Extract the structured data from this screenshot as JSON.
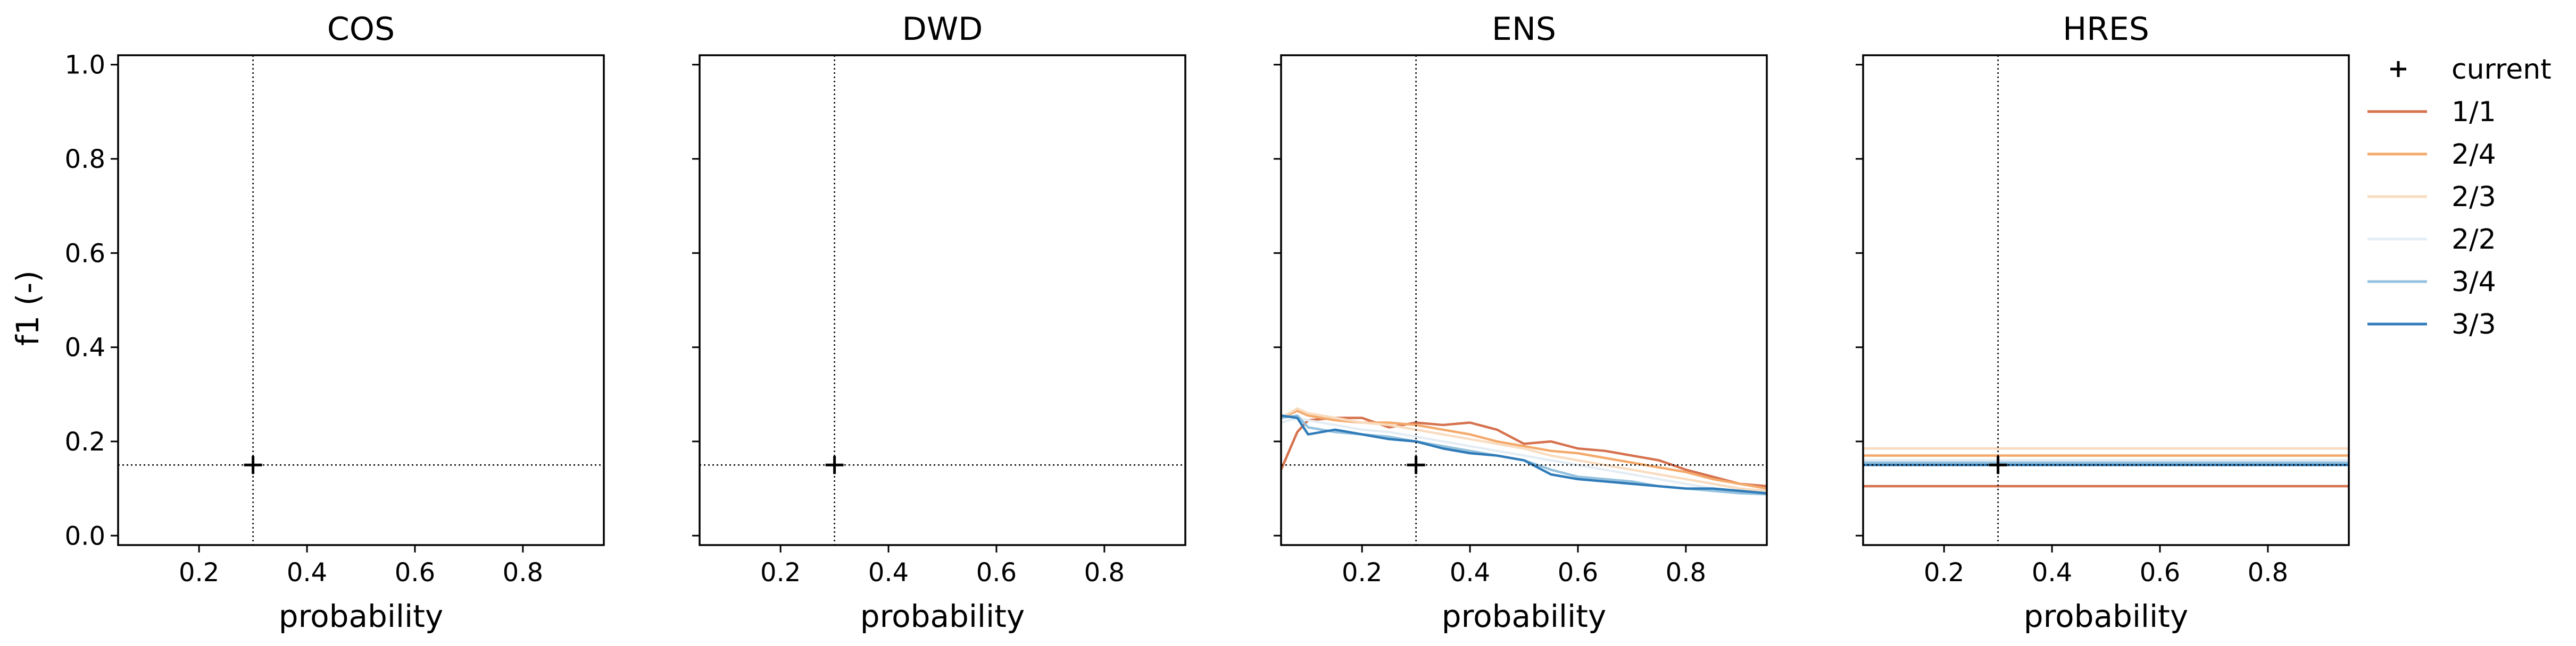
{
  "figure": {
    "ylabel": "f1 (-)",
    "xlabel": "probability",
    "legend_title_marker": "current"
  },
  "colors": {
    "1/1": "#d6714e",
    "2/4": "#f4a96b",
    "2/3": "#f9dcc0",
    "2/2": "#e4edf4",
    "3/4": "#94c1dd",
    "3/3": "#2f7bb8",
    "axes": "#000000",
    "reference": "#000000"
  },
  "chart_data": [
    {
      "type": "line",
      "title": "COS",
      "xlabel": "probability",
      "ylabel": "f1 (-)",
      "xlim": [
        0.05,
        0.95
      ],
      "ylim": [
        -0.02,
        1.02
      ],
      "xticks": [
        0.2,
        0.4,
        0.6,
        0.8
      ],
      "yticks": [
        0.0,
        0.2,
        0.4,
        0.6,
        0.8,
        1.0
      ],
      "reference_line_x": 0.3,
      "reference_line_y": 0.15,
      "current_point": {
        "x": 0.3,
        "y": 0.15
      },
      "series": []
    },
    {
      "type": "line",
      "title": "DWD",
      "xlabel": "probability",
      "ylabel": "",
      "xlim": [
        0.05,
        0.95
      ],
      "ylim": [
        -0.02,
        1.02
      ],
      "xticks": [
        0.2,
        0.4,
        0.6,
        0.8
      ],
      "yticks": [
        0.0,
        0.2,
        0.4,
        0.6,
        0.8,
        1.0
      ],
      "reference_line_x": 0.3,
      "reference_line_y": 0.15,
      "current_point": {
        "x": 0.3,
        "y": 0.15
      },
      "series": []
    },
    {
      "type": "line",
      "title": "ENS",
      "xlabel": "probability",
      "ylabel": "",
      "xlim": [
        0.05,
        0.95
      ],
      "ylim": [
        -0.02,
        1.02
      ],
      "xticks": [
        0.2,
        0.4,
        0.6,
        0.8
      ],
      "yticks": [
        0.0,
        0.2,
        0.4,
        0.6,
        0.8,
        1.0
      ],
      "reference_line_x": 0.3,
      "reference_line_y": 0.15,
      "current_point": {
        "x": 0.3,
        "y": 0.15
      },
      "x": [
        0.05,
        0.08,
        0.1,
        0.15,
        0.2,
        0.25,
        0.3,
        0.35,
        0.4,
        0.45,
        0.5,
        0.55,
        0.6,
        0.65,
        0.7,
        0.75,
        0.8,
        0.85,
        0.9,
        0.95
      ],
      "series": [
        {
          "name": "1/1",
          "values": [
            0.14,
            0.22,
            0.245,
            0.25,
            0.25,
            0.23,
            0.24,
            0.235,
            0.24,
            0.225,
            0.195,
            0.2,
            0.185,
            0.18,
            0.17,
            0.16,
            0.14,
            0.125,
            0.11,
            0.105
          ]
        },
        {
          "name": "2/4",
          "values": [
            0.25,
            0.265,
            0.255,
            0.245,
            0.24,
            0.24,
            0.235,
            0.225,
            0.215,
            0.2,
            0.19,
            0.18,
            0.175,
            0.165,
            0.155,
            0.145,
            0.135,
            0.12,
            0.11,
            0.1
          ]
        },
        {
          "name": "2/3",
          "values": [
            0.25,
            0.27,
            0.26,
            0.25,
            0.24,
            0.235,
            0.225,
            0.215,
            0.205,
            0.195,
            0.185,
            0.17,
            0.16,
            0.15,
            0.14,
            0.13,
            0.12,
            0.11,
            0.1,
            0.095
          ]
        },
        {
          "name": "2/2",
          "values": [
            0.24,
            0.25,
            0.245,
            0.235,
            0.225,
            0.22,
            0.21,
            0.2,
            0.19,
            0.18,
            0.17,
            0.16,
            0.15,
            0.14,
            0.13,
            0.12,
            0.11,
            0.1,
            0.095,
            0.09
          ]
        },
        {
          "name": "3/4",
          "values": [
            0.25,
            0.255,
            0.23,
            0.22,
            0.215,
            0.21,
            0.2,
            0.19,
            0.18,
            0.17,
            0.16,
            0.14,
            0.125,
            0.12,
            0.115,
            0.105,
            0.1,
            0.095,
            0.09,
            0.088
          ]
        },
        {
          "name": "3/3",
          "values": [
            0.255,
            0.25,
            0.215,
            0.225,
            0.215,
            0.205,
            0.2,
            0.185,
            0.175,
            0.17,
            0.16,
            0.13,
            0.12,
            0.115,
            0.11,
            0.105,
            0.1,
            0.1,
            0.095,
            0.09
          ]
        }
      ]
    },
    {
      "type": "line",
      "title": "HRES",
      "xlabel": "probability",
      "ylabel": "",
      "xlim": [
        0.05,
        0.95
      ],
      "ylim": [
        -0.02,
        1.02
      ],
      "xticks": [
        0.2,
        0.4,
        0.6,
        0.8
      ],
      "yticks": [
        0.0,
        0.2,
        0.4,
        0.6,
        0.8,
        1.0
      ],
      "reference_line_x": 0.3,
      "reference_line_y": 0.15,
      "current_point": {
        "x": 0.3,
        "y": 0.15
      },
      "x": [
        0.05,
        0.95
      ],
      "series": [
        {
          "name": "1/1",
          "values": [
            0.105,
            0.105
          ]
        },
        {
          "name": "2/4",
          "values": [
            0.17,
            0.17
          ]
        },
        {
          "name": "2/3",
          "values": [
            0.185,
            0.185
          ]
        },
        {
          "name": "2/2",
          "values": [
            0.16,
            0.16
          ]
        },
        {
          "name": "3/4",
          "values": [
            0.155,
            0.155
          ]
        },
        {
          "name": "3/3",
          "values": [
            0.15,
            0.15
          ]
        }
      ]
    }
  ],
  "legend": {
    "placement": "right",
    "entries": [
      {
        "label": "current",
        "kind": "marker"
      },
      {
        "label": "1/1",
        "kind": "line"
      },
      {
        "label": "2/4",
        "kind": "line"
      },
      {
        "label": "2/3",
        "kind": "line"
      },
      {
        "label": "2/2",
        "kind": "line"
      },
      {
        "label": "3/4",
        "kind": "line"
      },
      {
        "label": "3/3",
        "kind": "line"
      }
    ]
  }
}
